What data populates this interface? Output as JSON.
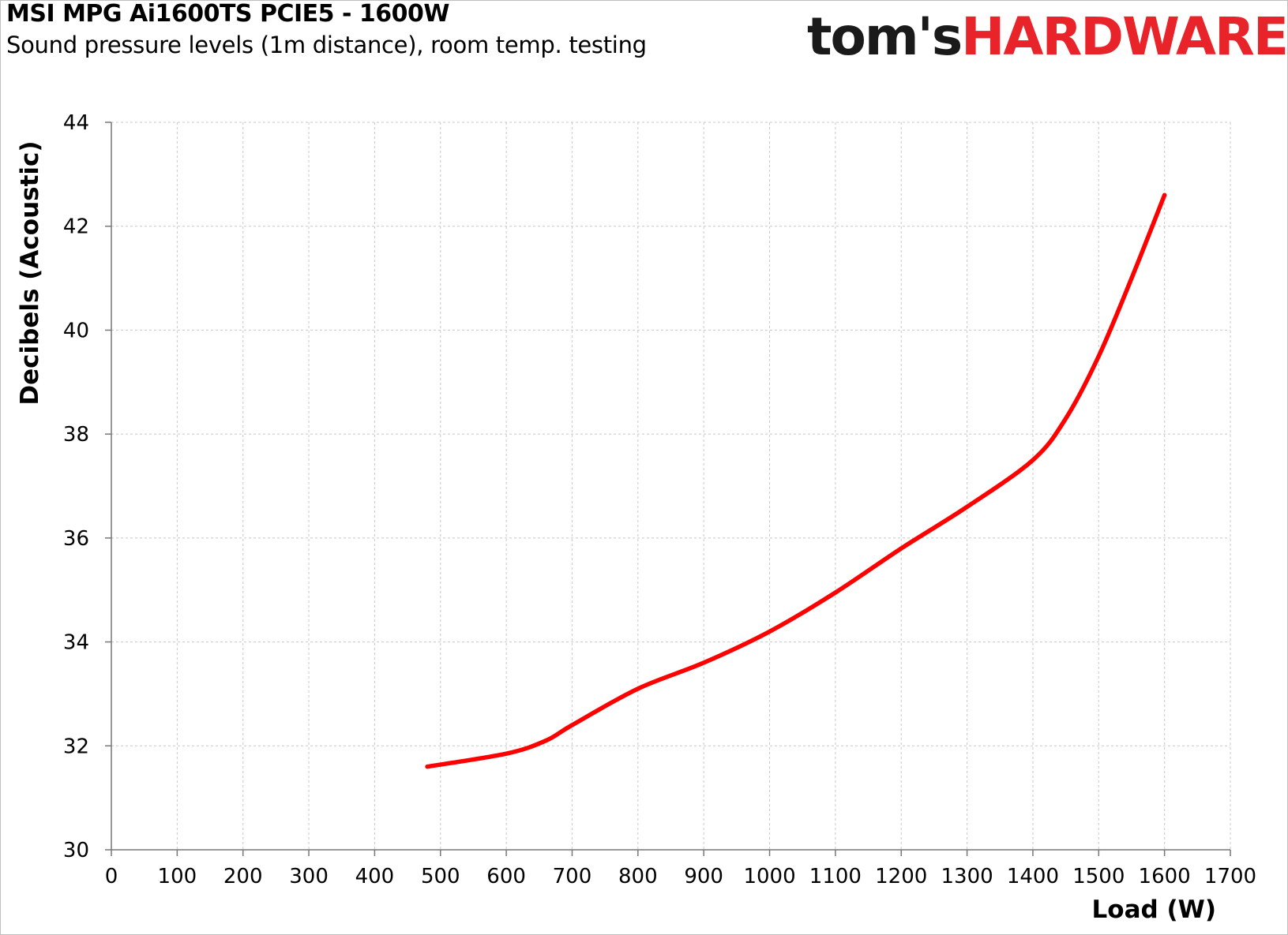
{
  "header": {
    "title": "MSI MPG Ai1600TS PCIE5 - 1600W",
    "subtitle": "Sound pressure levels (1m distance), room temp. testing"
  },
  "logo": {
    "part1": "tom's",
    "part2": "HARDWARE",
    "colors": {
      "part1": "#1a1a1a",
      "part2": "#e8242a"
    }
  },
  "chart_data": {
    "type": "line",
    "title": "MSI MPG Ai1600TS PCIE5 - 1600W",
    "subtitle": "Sound pressure levels (1m distance), room temp. testing",
    "xlabel": "Load (W)",
    "ylabel": "Decibels (Acoustic)",
    "xlim": [
      0,
      1700
    ],
    "ylim": [
      30,
      44
    ],
    "xticks": [
      "0",
      "100",
      "200",
      "300",
      "400",
      "500",
      "600",
      "700",
      "800",
      "900",
      "1000",
      "1100",
      "1200",
      "1300",
      "1400",
      "1500",
      "1600",
      "1700"
    ],
    "yticks": [
      "30",
      "32",
      "34",
      "36",
      "38",
      "40",
      "42",
      "44"
    ],
    "grid": true,
    "legend": "none",
    "series": [
      {
        "color": "#ff0000",
        "x": [
          480,
          600,
          660,
          700,
          800,
          900,
          1000,
          1100,
          1200,
          1300,
          1400,
          1450,
          1500,
          1550,
          1600
        ],
        "y": [
          31.6,
          31.85,
          32.1,
          32.4,
          33.1,
          33.6,
          34.2,
          34.95,
          35.8,
          36.6,
          37.5,
          38.3,
          39.5,
          41.0,
          42.6
        ]
      }
    ]
  }
}
